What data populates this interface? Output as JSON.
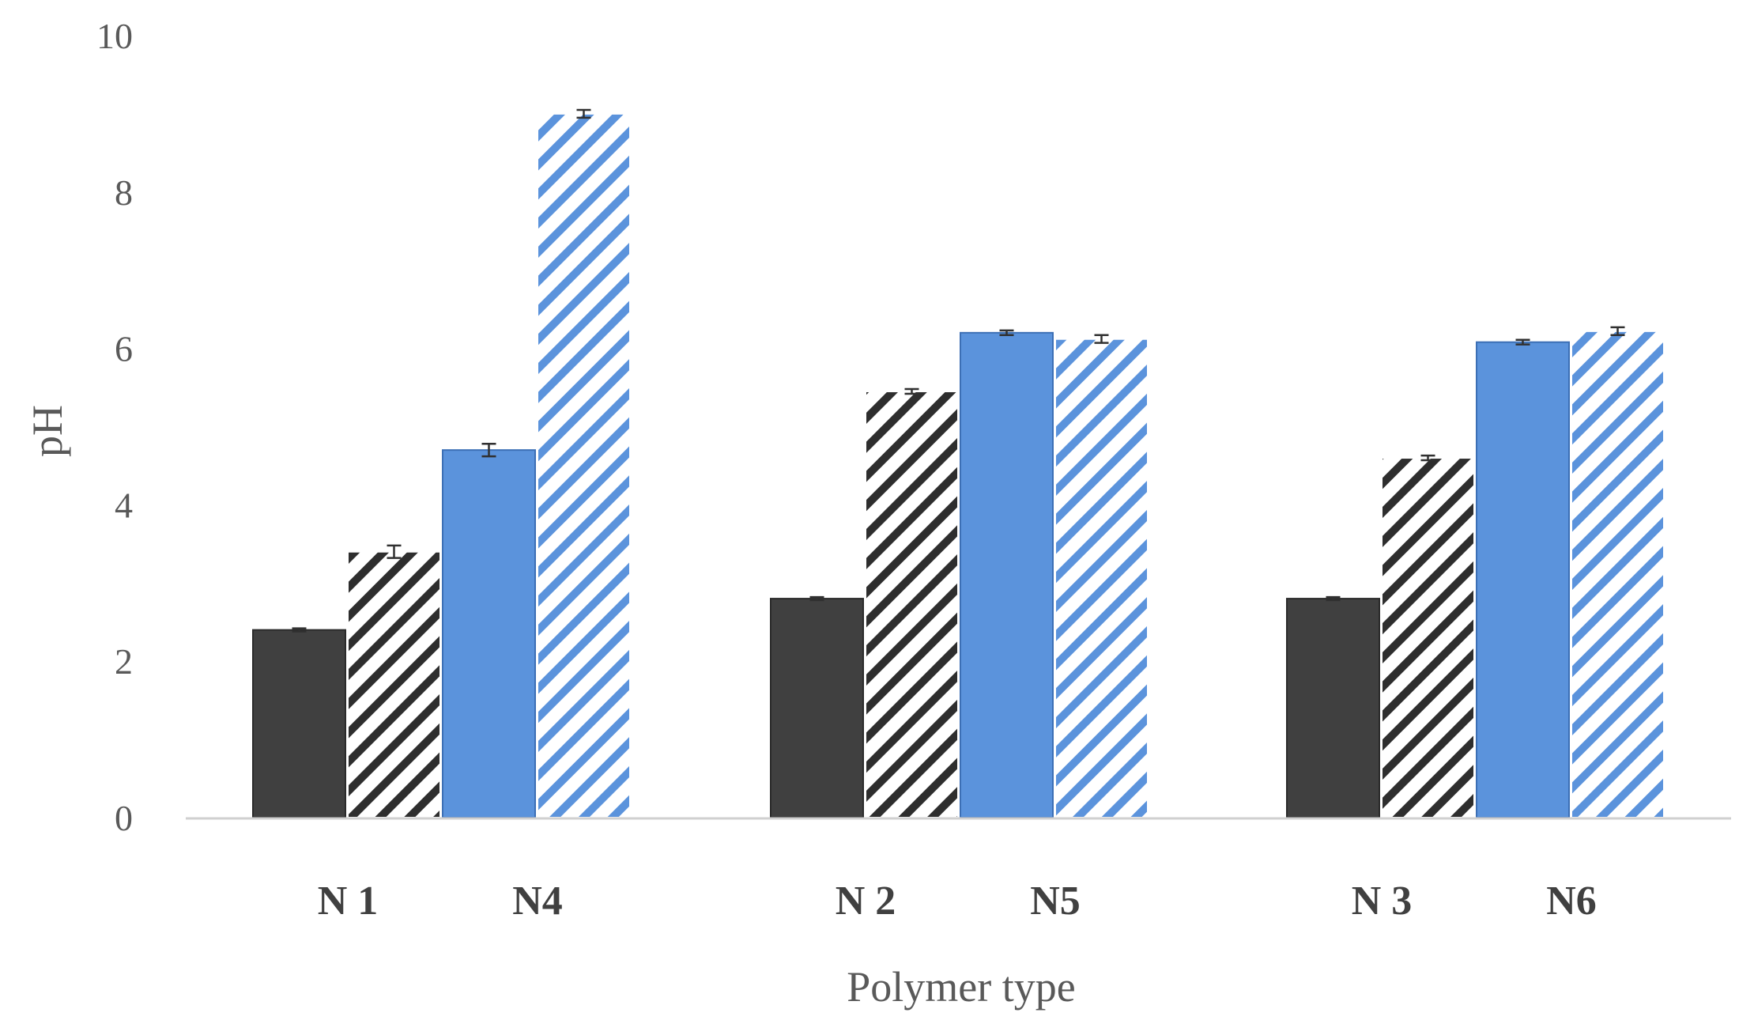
{
  "chart_data": {
    "type": "bar",
    "title": "",
    "xlabel": "Polymer type",
    "ylabel": "pH",
    "ylim": [
      0,
      10
    ],
    "yticks": [
      0,
      2,
      4,
      6,
      8,
      10
    ],
    "grid": false,
    "legend": "none",
    "groups": [
      {
        "labels": [
          "N 1",
          "N4"
        ],
        "values": [
          2.4,
          3.4,
          4.7,
          9.0
        ],
        "errors": [
          0.02,
          0.08,
          0.08,
          0.05
        ]
      },
      {
        "labels": [
          "N 2",
          "N5"
        ],
        "values": [
          2.8,
          5.45,
          6.2,
          6.12
        ],
        "errors": [
          0.02,
          0.03,
          0.03,
          0.05
        ]
      },
      {
        "labels": [
          "N 3",
          "N6"
        ],
        "values": [
          2.8,
          4.6,
          6.08,
          6.22
        ],
        "errors": [
          0.02,
          0.03,
          0.03,
          0.05
        ]
      }
    ],
    "bar_styles": [
      "solid-dark",
      "hatched-dark",
      "solid-blue",
      "hatched-blue"
    ],
    "colors": {
      "dark": "#404040",
      "dark_edge": "#2b2b2b",
      "blue": "#5b93dc",
      "blue_edge": "#3c6fb5",
      "axis": "#d0d0d0"
    }
  }
}
